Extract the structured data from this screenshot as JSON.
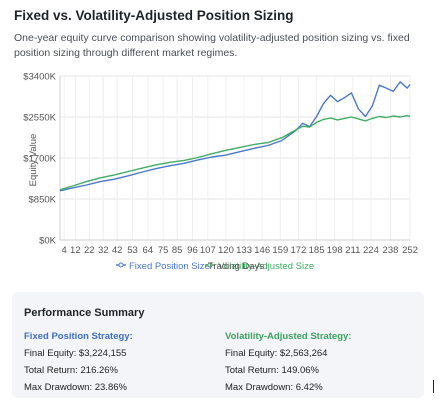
{
  "header": {
    "title": "Fixed vs. Volatility-Adjusted Position Sizing",
    "subtitle": "One-year equity curve comparison showing volatility-adjusted position sizing vs. fixed position sizing through different market regimes."
  },
  "chart_data": {
    "type": "line",
    "xlabel": "Trading Days",
    "ylabel": "Equity Value",
    "xlim": [
      1,
      252
    ],
    "ylim": [
      0,
      3400
    ],
    "x_ticks": [
      4,
      12,
      22,
      32,
      42,
      53,
      64,
      75,
      85,
      96,
      107,
      120,
      133,
      146,
      159,
      172,
      185,
      198,
      211,
      224,
      238,
      252
    ],
    "y_ticks": [
      "$0K",
      "$850K",
      "$1700K",
      "$2550K",
      "$3400K"
    ],
    "y_tick_values": [
      0,
      850,
      1700,
      2550,
      3400
    ],
    "grid": true,
    "legend": "bottom-center",
    "series": [
      {
        "name": "Fixed Position Size",
        "color": "#4a78cf",
        "x": [
          1,
          10,
          20,
          30,
          40,
          50,
          60,
          70,
          80,
          90,
          100,
          110,
          120,
          130,
          140,
          150,
          160,
          170,
          175,
          180,
          185,
          190,
          195,
          200,
          205,
          210,
          215,
          220,
          225,
          230,
          235,
          240,
          245,
          250,
          252
        ],
        "values": [
          1020,
          1080,
          1140,
          1210,
          1260,
          1330,
          1410,
          1480,
          1540,
          1590,
          1660,
          1720,
          1760,
          1830,
          1900,
          1960,
          2060,
          2270,
          2420,
          2350,
          2560,
          2830,
          3000,
          2870,
          2950,
          3050,
          2720,
          2560,
          2780,
          3210,
          3150,
          3080,
          3280,
          3150,
          3224
        ]
      },
      {
        "name": "Volatility-Adjusted Size",
        "color": "#3fae62",
        "x": [
          1,
          10,
          20,
          30,
          40,
          50,
          60,
          70,
          80,
          90,
          100,
          110,
          120,
          130,
          140,
          150,
          160,
          170,
          175,
          180,
          185,
          190,
          195,
          200,
          205,
          210,
          215,
          220,
          225,
          230,
          235,
          240,
          245,
          250,
          252
        ],
        "values": [
          1040,
          1120,
          1210,
          1290,
          1350,
          1420,
          1490,
          1560,
          1610,
          1650,
          1710,
          1790,
          1860,
          1920,
          1980,
          2020,
          2120,
          2280,
          2360,
          2340,
          2440,
          2500,
          2530,
          2490,
          2520,
          2550,
          2510,
          2470,
          2520,
          2560,
          2540,
          2570,
          2550,
          2580,
          2563
        ]
      }
    ]
  },
  "summary": {
    "title": "Performance Summary",
    "fixed": {
      "heading": "Fixed Position Strategy:",
      "final_equity": "Final Equity: $3,224,155",
      "total_return": "Total Return: 216.26%",
      "max_drawdown": "Max Drawdown: 23.86%"
    },
    "vol": {
      "heading": "Volatility-Adjusted Strategy:",
      "final_equity": "Final Equity: $2,563,264",
      "total_return": "Total Return: 149.06%",
      "max_drawdown": "Max Drawdown: 6.42%"
    }
  }
}
